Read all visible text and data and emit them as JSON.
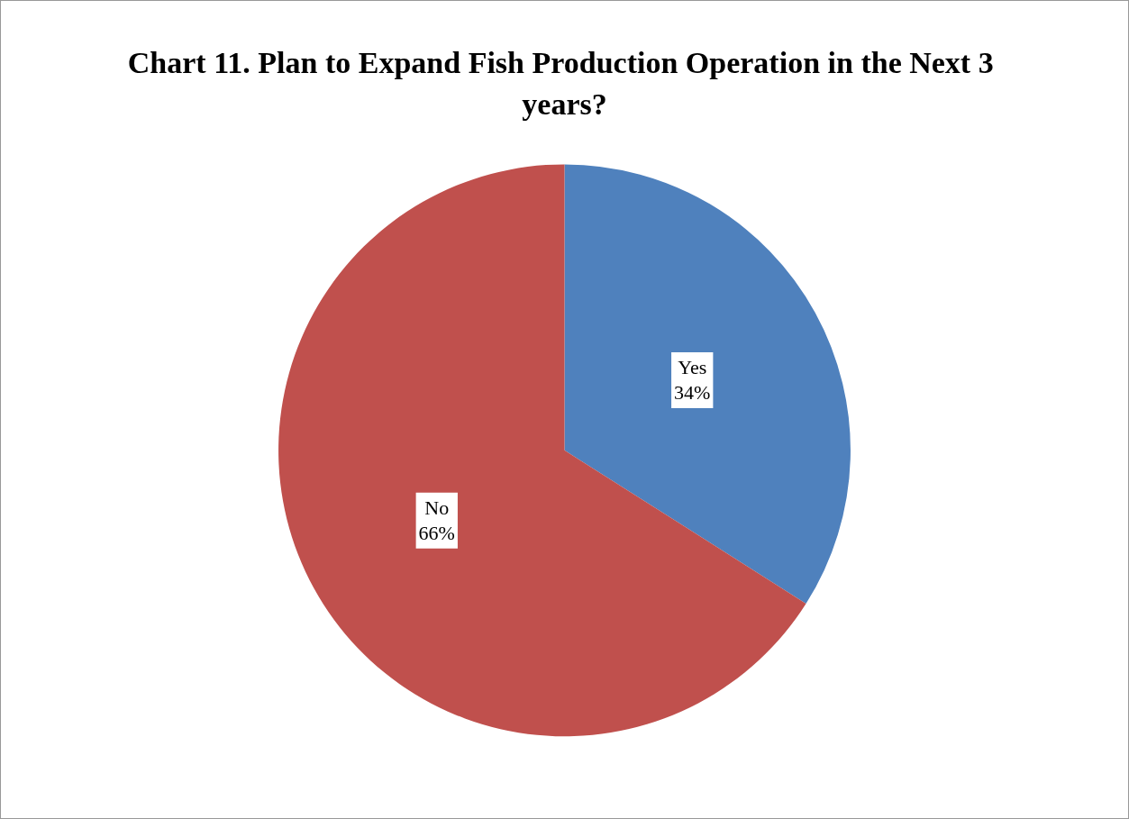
{
  "chart_data": {
    "type": "pie",
    "title": "Chart 11. Plan to Expand Fish Production Operation in the Next 3 years?",
    "categories": [
      "Yes",
      "No"
    ],
    "values": [
      34,
      66
    ],
    "value_labels": [
      "34%",
      "66%"
    ],
    "colors": [
      "#4f81bd",
      "#c0504d"
    ],
    "legend": false
  }
}
